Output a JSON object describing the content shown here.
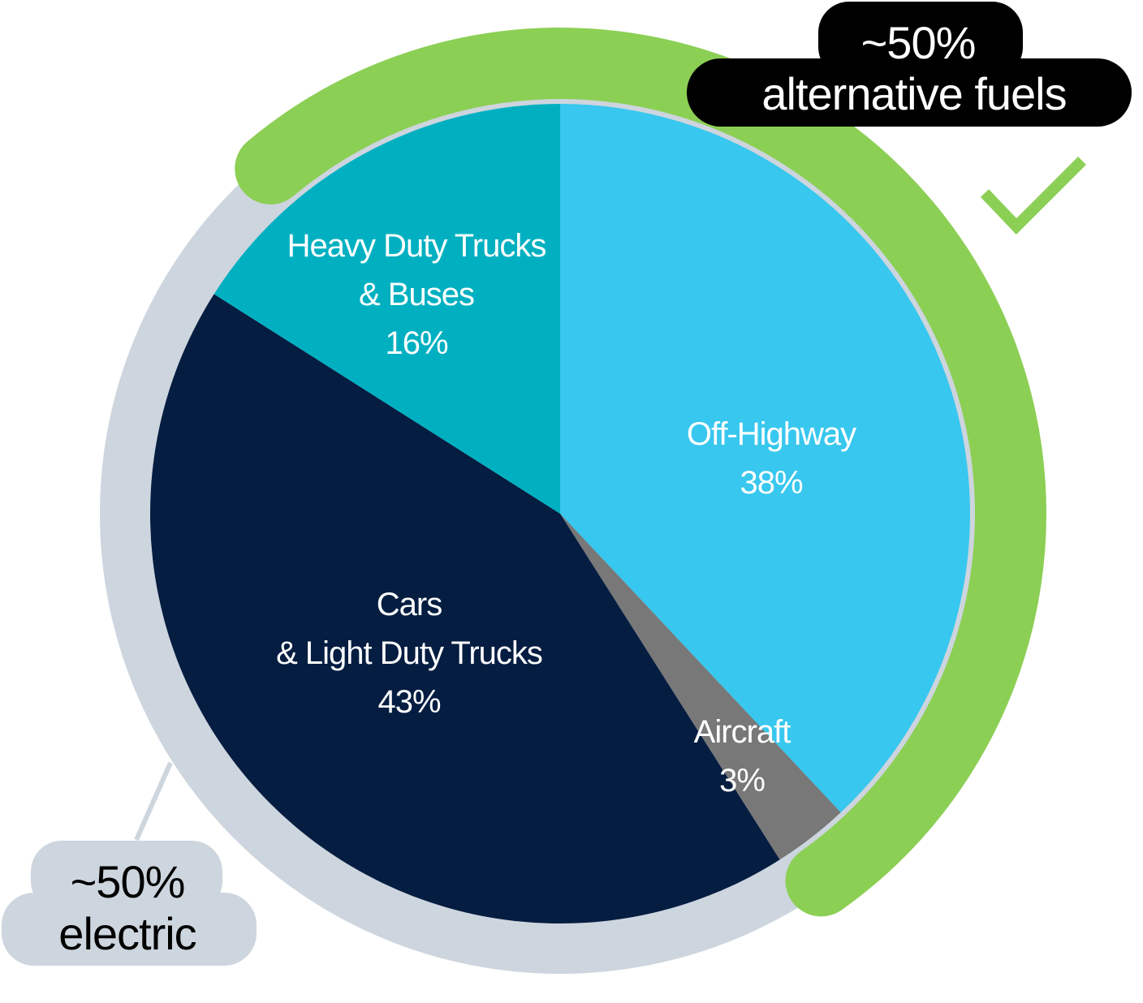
{
  "chart_data": {
    "type": "pie",
    "title": "",
    "slices": [
      {
        "label": [
          "Off-Highway"
        ],
        "value": 38,
        "value_label": "38%",
        "color": "#38c7ee"
      },
      {
        "label": [
          "Aircraft"
        ],
        "value": 3,
        "value_label": "3%",
        "color": "#787878"
      },
      {
        "label": [
          "Cars",
          "& Light Duty Trucks"
        ],
        "value": 43,
        "value_label": "43%",
        "color": "#051d41"
      },
      {
        "label": [
          "Heavy Duty Trucks",
          "& Buses"
        ],
        "value": 16,
        "value_label": "16%",
        "color": "#00b0c1"
      }
    ],
    "groups": [
      {
        "line1": "~50%",
        "line2": "alternative fuels",
        "color": "#8ccf55",
        "text_color": "#ffffff",
        "bubble_color": "#000000",
        "covers": [
          "Off-Highway",
          "Aircraft"
        ]
      },
      {
        "line1": "~50%",
        "line2": "electric",
        "color": "#cdd5de",
        "text_color": "#000000",
        "bubble_color": "#cdd5de",
        "covers": [
          "Cars",
          "Heavy Duty Trucks"
        ]
      }
    ],
    "check_icon": "checkmark-icon",
    "check_color": "#8ccf55",
    "outer_ring_color": "#cdd5de"
  }
}
